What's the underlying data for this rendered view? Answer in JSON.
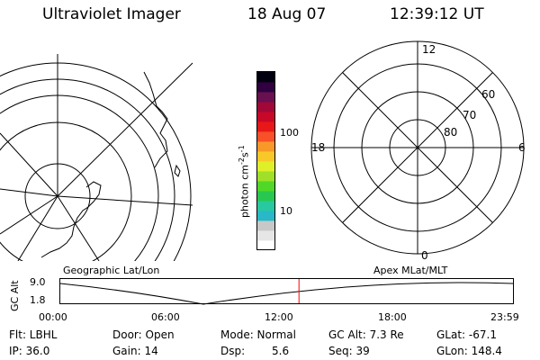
{
  "header": {
    "title": "Ultraviolet Imager",
    "date": "18 Aug 07",
    "time": "12:39:12 UT"
  },
  "left_panel": {
    "label": "Geographic Lat/Lon"
  },
  "right_panel": {
    "label": "Apex MLat/MLT",
    "mlt_labels": {
      "top": "12",
      "left": "18",
      "right": "6",
      "bottom": "0"
    },
    "mlat_labels": [
      "60",
      "70",
      "80"
    ]
  },
  "colorbar": {
    "unit_base": "photon cm",
    "unit_exp1": "-2",
    "unit_mid": "s",
    "unit_exp2": "-1",
    "ticks": [
      "100",
      "10"
    ],
    "colors": [
      "#ffffff",
      "#e6e6e6",
      "#c8c8c8",
      "#28b8c8",
      "#28c8a0",
      "#28c850",
      "#50d828",
      "#a0e028",
      "#e0f028",
      "#f8c828",
      "#f89828",
      "#f85028",
      "#e81818",
      "#c80828",
      "#a00838",
      "#681050",
      "#300040",
      "#000010"
    ]
  },
  "timeline": {
    "y_label": "GC Alt",
    "y_ticks": [
      "9.0",
      "1.8"
    ],
    "x_ticks": [
      "00:00",
      "06:00",
      "12:00",
      "18:00",
      "23:59"
    ],
    "current_time_hours": 12.65,
    "marker_color": "#ff0000"
  },
  "footer": {
    "filter": "Flt: LBHL",
    "ip": "IP: 36.0",
    "door": "Door: Open",
    "gain": "Gain: 14",
    "mode": "Mode: Normal",
    "dsp_label": "Dsp:",
    "dsp_value": "5.6",
    "gc_alt": "GC Alt: 7.3 Re",
    "seq": "Seq: 39",
    "glat": "GLat: -67.1",
    "glon": "GLon: 148.4"
  }
}
